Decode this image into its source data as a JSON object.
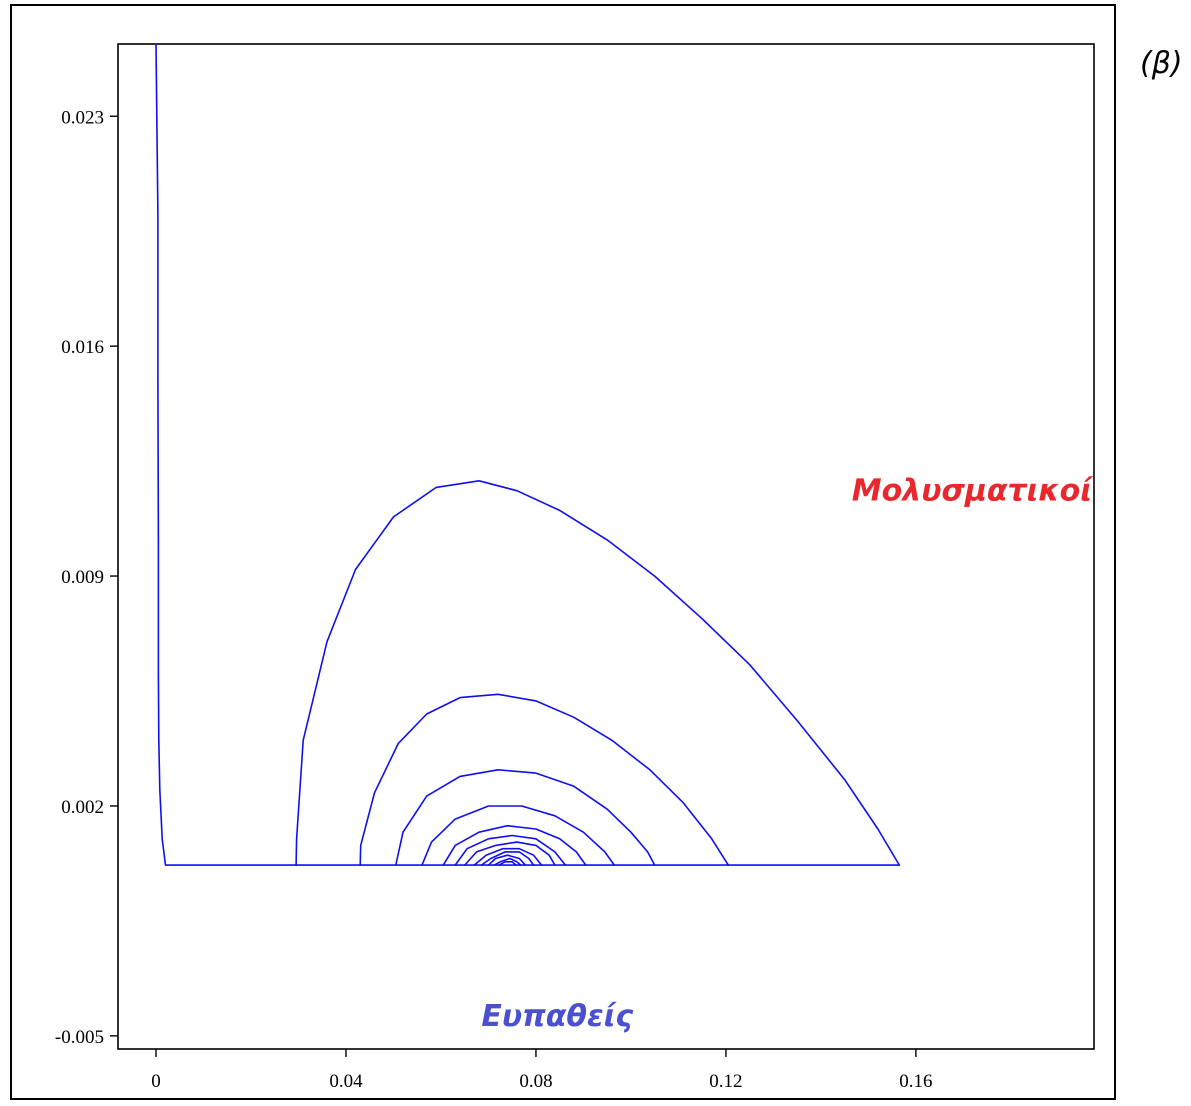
{
  "panel_label": "(β)",
  "chart_data": {
    "type": "line",
    "title": "",
    "xlabel": "",
    "ylabel": "",
    "xlim": [
      -0.008,
      0.1975
    ],
    "ylim": [
      -0.0054,
      0.0252
    ],
    "x_ticks": [
      0,
      0.04,
      0.08,
      0.12,
      0.16
    ],
    "x_tick_labels": [
      "0",
      "0.04",
      "0.08",
      "0.12",
      "0.16"
    ],
    "y_ticks": [
      -0.005,
      0.002,
      0.009,
      0.016,
      0.023
    ],
    "y_tick_labels": [
      "-0.005",
      "0.002",
      "0.009",
      "0.016",
      "0.023"
    ],
    "grid": false,
    "line_color": "#1010ee",
    "series": [
      {
        "x": [
          0.0,
          0.0004,
          0.0004,
          0.0005,
          0.0005,
          0.0006,
          0.0008,
          0.0013,
          0.002,
          0.03,
          0.06,
          0.09,
          0.12,
          0.15,
          0.1565
        ],
        "y": [
          0.0252,
          0.02,
          0.015,
          0.01,
          0.006,
          0.004,
          0.0025,
          0.001,
          0.0002,
          0.0002,
          0.0002,
          0.0002,
          0.0002,
          0.0002,
          0.0002
        ]
      },
      {
        "x": [
          0.0295,
          0.0296,
          0.031,
          0.036,
          0.042,
          0.05,
          0.059,
          0.068,
          0.076,
          0.085,
          0.095,
          0.105,
          0.115,
          0.125,
          0.135,
          0.145,
          0.152,
          0.1565
        ],
        "y": [
          0.0002,
          0.001,
          0.004,
          0.007,
          0.0092,
          0.0108,
          0.0117,
          0.0119,
          0.0116,
          0.011,
          0.0101,
          0.009,
          0.0077,
          0.0063,
          0.0046,
          0.0028,
          0.0013,
          0.0002
        ]
      },
      {
        "x": [
          0.043,
          0.0431,
          0.046,
          0.051,
          0.057,
          0.064,
          0.072,
          0.08,
          0.088,
          0.096,
          0.104,
          0.111,
          0.117,
          0.1205
        ],
        "y": [
          0.0002,
          0.0008,
          0.0024,
          0.0039,
          0.0048,
          0.0053,
          0.0054,
          0.0052,
          0.0047,
          0.004,
          0.0031,
          0.0021,
          0.001,
          0.0002
        ]
      },
      {
        "x": [
          0.0505,
          0.052,
          0.057,
          0.064,
          0.072,
          0.08,
          0.088,
          0.095,
          0.1,
          0.1035,
          0.105
        ],
        "y": [
          0.0002,
          0.0012,
          0.0023,
          0.0029,
          0.0031,
          0.003,
          0.0026,
          0.0019,
          0.0012,
          0.0006,
          0.0002
        ]
      },
      {
        "x": [
          0.056,
          0.058,
          0.063,
          0.07,
          0.077,
          0.084,
          0.09,
          0.0945,
          0.0965
        ],
        "y": [
          0.0002,
          0.0009,
          0.0016,
          0.002,
          0.002,
          0.0017,
          0.0012,
          0.0006,
          0.0002
        ]
      },
      {
        "x": [
          0.0605,
          0.063,
          0.068,
          0.074,
          0.08,
          0.085,
          0.0885,
          0.0905
        ],
        "y": [
          0.0002,
          0.0008,
          0.0012,
          0.0014,
          0.0013,
          0.001,
          0.0006,
          0.0002
        ]
      },
      {
        "x": [
          0.063,
          0.0655,
          0.07,
          0.075,
          0.08,
          0.084,
          0.0862
        ],
        "y": [
          0.0002,
          0.0007,
          0.001,
          0.0011,
          0.001,
          0.0006,
          0.0002
        ]
      },
      {
        "x": [
          0.065,
          0.0675,
          0.0715,
          0.076,
          0.08,
          0.0828,
          0.084
        ],
        "y": [
          0.0002,
          0.0006,
          0.0008,
          0.0009,
          0.0008,
          0.0005,
          0.0002
        ]
      },
      {
        "x": [
          0.067,
          0.0695,
          0.073,
          0.0765,
          0.0795,
          0.0812
        ],
        "y": [
          0.0002,
          0.0005,
          0.0007,
          0.0007,
          0.0005,
          0.0002
        ]
      },
      {
        "x": [
          0.0685,
          0.0705,
          0.0735,
          0.0765,
          0.0785,
          0.0795
        ],
        "y": [
          0.0002,
          0.0004,
          0.0006,
          0.0006,
          0.0004,
          0.0002
        ]
      },
      {
        "x": [
          0.07,
          0.0715,
          0.074,
          0.0765,
          0.0778
        ],
        "y": [
          0.0002,
          0.0004,
          0.0005,
          0.0004,
          0.0002
        ]
      },
      {
        "x": [
          0.0712,
          0.0725,
          0.0745,
          0.076,
          0.0768
        ],
        "y": [
          0.0002,
          0.0003,
          0.0004,
          0.0003,
          0.0002
        ]
      },
      {
        "x": [
          0.0722,
          0.0735,
          0.075,
          0.0758
        ],
        "y": [
          0.0002,
          0.0003,
          0.0003,
          0.0002
        ]
      }
    ],
    "annotations": [
      {
        "text": "Μολυσματικοί",
        "x": 0.1465,
        "y": 0.0113,
        "color": "#e8282d"
      },
      {
        "text": "Ευπαθείς",
        "x": 0.0685,
        "y": -0.0047,
        "color": "#4a50d0"
      }
    ]
  }
}
